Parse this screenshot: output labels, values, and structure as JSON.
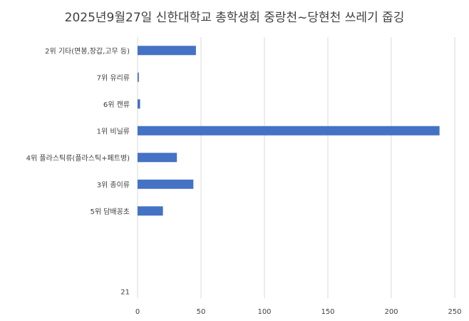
{
  "chart_data": {
    "type": "bar",
    "orientation": "horizontal",
    "title": "2025년9월27일 신한대학교 총학생회 중랑천~당현천 쓰레기 줍깅",
    "categories": [
      "2위 기타(면봉,장갑,고무 등)",
      "7위 유리류",
      "6위 캔류",
      "1위 비닐류",
      "4위 플라스틱류(플라스틱+페트병)",
      "3위 종이류",
      "5위 담배꽁초",
      "",
      "",
      "21"
    ],
    "values": [
      46,
      1,
      2,
      238,
      31,
      44,
      20,
      null,
      null,
      null
    ],
    "xlim": [
      0,
      250
    ],
    "xticks": [
      0,
      50,
      100,
      150,
      200,
      250
    ],
    "grid": true,
    "bar_color": "#4472C4",
    "legend": "none"
  }
}
